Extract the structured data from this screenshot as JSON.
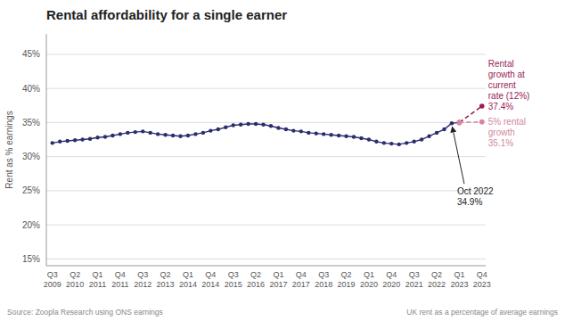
{
  "chart_data": {
    "type": "line",
    "title": "Rental affordability for a single earner",
    "y_label": "Rent as % earnings",
    "footnotes": [
      "Source: Zoopla Research using ONS earnings",
      "UK rent as a percentage of average earnings"
    ],
    "categories": [
      "Q3\n2009",
      null,
      null,
      "Q2\n2010",
      null,
      null,
      "Q1\n2011",
      null,
      null,
      "Q4\n2011",
      null,
      null,
      "Q3\n2012",
      null,
      null,
      "Q2\n2013",
      null,
      null,
      "Q1\n2014",
      null,
      null,
      "Q4\n2014",
      null,
      null,
      "Q3\n2015",
      null,
      null,
      "Q2\n2016",
      null,
      null,
      "Q1\n2017",
      null,
      null,
      "Q4\n2017",
      null,
      null,
      "Q3\n2018",
      null,
      null,
      "Q2\n2019",
      null,
      null,
      "Q1\n2020",
      null,
      null,
      "Q4\n2020",
      null,
      null,
      "Q3\n2021",
      null,
      null,
      "Q2\n2022",
      null,
      null,
      "Q1\n2023",
      null,
      null,
      "Q4\n2023"
    ],
    "series": [
      {
        "color": "#2b2d6e",
        "line_style": "solid",
        "marker": "circle",
        "values": [
          32.0,
          32.2,
          32.3,
          32.4,
          32.5,
          32.6,
          32.8,
          32.9,
          33.1,
          33.3,
          33.5,
          33.6,
          33.7,
          33.5,
          33.3,
          33.2,
          33.1,
          33.0,
          33.1,
          33.3,
          33.5,
          33.8,
          34.0,
          34.3,
          34.6,
          34.7,
          34.8,
          34.8,
          34.7,
          34.5,
          34.2,
          34.0,
          33.8,
          33.7,
          33.5,
          33.4,
          33.3,
          33.2,
          33.1,
          33.0,
          32.9,
          32.7,
          32.5,
          32.2,
          32.0,
          31.9,
          31.8,
          32.0,
          32.2,
          32.5,
          33.0,
          33.5,
          34.0,
          34.9,
          35.0,
          null,
          null,
          null
        ]
      },
      {
        "color": "#9b1c5a",
        "line_style": "dashed",
        "marker": "circle",
        "x": [
          "Q1\n2023",
          "Q4\n2023"
        ],
        "values": [
          35.0,
          37.4
        ],
        "label": "Rental\ngrowth at\ncurrent\nrate (12%)\n37.4%"
      },
      {
        "color": "#d4879c",
        "line_style": "dashed",
        "marker": "circle",
        "x": [
          "Q1\n2023",
          "Q4\n2023"
        ],
        "values": [
          35.0,
          35.1
        ],
        "label": "5% rental\ngrowth\n35.1%"
      }
    ],
    "annotations": [
      {
        "text": "Oct 2022\n34.9%",
        "index": 53,
        "value": 34.9
      }
    ],
    "ylim": [
      14,
      48
    ],
    "yticks": [
      {
        "value": 15,
        "label": "15%"
      },
      {
        "value": 20,
        "label": "20%"
      },
      {
        "value": 25,
        "label": "25%"
      },
      {
        "value": 30,
        "label": "30%"
      },
      {
        "value": 35,
        "label": "35%"
      },
      {
        "value": 40,
        "label": "40%"
      },
      {
        "value": 45,
        "label": "45%"
      }
    ],
    "grid": true
  }
}
